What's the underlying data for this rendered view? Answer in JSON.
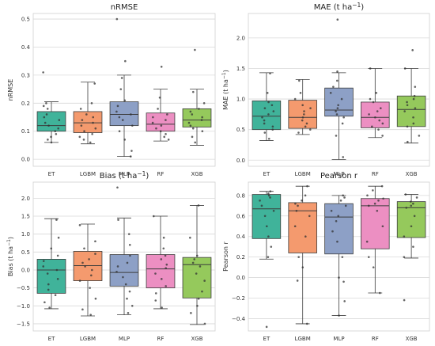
{
  "chart_data": [
    {
      "type": "box",
      "title": "nRMSE",
      "title_sup": "",
      "title_suffix": "",
      "ylabel": "nRMSE",
      "ylabel_sup": "",
      "ylabel_suffix": "",
      "ylim": [
        -0.025,
        0.52
      ],
      "yticks": [
        0.0,
        0.1,
        0.2,
        0.3,
        0.4,
        0.5
      ],
      "ytick_labels": [
        "0.0",
        "0.1",
        "0.2",
        "0.3",
        "0.4",
        "0.5"
      ],
      "categories": [
        "ET",
        "LGBM",
        "MLP",
        "RF",
        "XGB"
      ],
      "boxes": [
        {
          "whisker_low": 0.06,
          "q1": 0.1,
          "median": 0.12,
          "q3": 0.17,
          "whisker_high": 0.205
        },
        {
          "whisker_low": 0.055,
          "q1": 0.095,
          "median": 0.13,
          "q3": 0.17,
          "whisker_high": 0.275
        },
        {
          "whisker_low": 0.01,
          "q1": 0.12,
          "median": 0.16,
          "q3": 0.205,
          "whisker_high": 0.3
        },
        {
          "whisker_low": 0.065,
          "q1": 0.1,
          "median": 0.125,
          "q3": 0.165,
          "whisker_high": 0.25
        },
        {
          "whisker_low": 0.05,
          "q1": 0.115,
          "median": 0.14,
          "q3": 0.18,
          "whisker_high": 0.25
        }
      ],
      "points": [
        [
          0.31,
          0.2,
          0.19,
          0.18,
          0.16,
          0.15,
          0.14,
          0.13,
          0.12,
          0.11,
          0.1,
          0.09,
          0.08,
          0.07,
          0.06
        ],
        [
          0.27,
          0.2,
          0.18,
          0.16,
          0.15,
          0.14,
          0.13,
          0.12,
          0.11,
          0.1,
          0.09,
          0.08,
          0.07,
          0.06
        ],
        [
          0.5,
          0.35,
          0.29,
          0.25,
          0.21,
          0.19,
          0.17,
          0.16,
          0.15,
          0.14,
          0.12,
          0.1,
          0.07,
          0.03,
          0.01
        ],
        [
          0.33,
          0.22,
          0.18,
          0.16,
          0.15,
          0.14,
          0.13,
          0.12,
          0.11,
          0.1,
          0.09,
          0.08,
          0.07
        ],
        [
          0.39,
          0.24,
          0.2,
          0.18,
          0.17,
          0.16,
          0.15,
          0.14,
          0.13,
          0.12,
          0.11,
          0.1,
          0.08,
          0.06
        ]
      ]
    },
    {
      "type": "box",
      "title": "MAE (t ha",
      "title_sup": "−1",
      "title_suffix": ")",
      "ylabel": "MAE (t ha",
      "ylabel_sup": "−1",
      "ylabel_suffix": ")",
      "ylim": [
        -0.1,
        2.4
      ],
      "yticks": [
        0.0,
        0.5,
        1.0,
        1.5,
        2.0
      ],
      "ytick_labels": [
        "0.0",
        "0.5",
        "1.0",
        "1.5",
        "2.0"
      ],
      "categories": [
        "ET",
        "LGBM",
        "MLP",
        "RF",
        "XGB"
      ],
      "boxes": [
        {
          "whisker_low": 0.32,
          "q1": 0.5,
          "median": 0.72,
          "q3": 0.97,
          "whisker_high": 1.43
        },
        {
          "whisker_low": 0.42,
          "q1": 0.52,
          "median": 0.7,
          "q3": 0.98,
          "whisker_high": 1.32
        },
        {
          "whisker_low": 0.01,
          "q1": 0.72,
          "median": 0.82,
          "q3": 1.18,
          "whisker_high": 1.43
        },
        {
          "whisker_low": 0.37,
          "q1": 0.53,
          "median": 0.7,
          "q3": 0.95,
          "whisker_high": 1.5
        },
        {
          "whisker_low": 0.28,
          "q1": 0.55,
          "median": 0.83,
          "q3": 1.05,
          "whisker_high": 1.5
        }
      ],
      "points": [
        [
          1.42,
          1.1,
          0.95,
          0.9,
          0.85,
          0.8,
          0.75,
          0.7,
          0.65,
          0.6,
          0.55,
          0.5,
          0.45,
          0.35
        ],
        [
          1.3,
          1.1,
          1.0,
          0.9,
          0.85,
          0.8,
          0.75,
          0.7,
          0.65,
          0.6,
          0.55,
          0.5,
          0.45
        ],
        [
          2.3,
          1.45,
          1.3,
          1.2,
          1.1,
          1.0,
          0.9,
          0.85,
          0.8,
          0.75,
          0.7,
          0.6,
          0.4,
          0.05
        ],
        [
          1.5,
          1.1,
          1.0,
          0.95,
          0.85,
          0.8,
          0.75,
          0.7,
          0.65,
          0.6,
          0.55,
          0.5,
          0.4
        ],
        [
          1.8,
          1.5,
          1.2,
          1.05,
          1.0,
          0.95,
          0.9,
          0.85,
          0.8,
          0.7,
          0.6,
          0.55,
          0.4,
          0.3
        ]
      ]
    },
    {
      "type": "box",
      "title": "Bias (t ha",
      "title_sup": "−1",
      "title_suffix": ")",
      "ylabel": "Bias (t ha",
      "ylabel_sup": "−1",
      "ylabel_suffix": ")",
      "ylim": [
        -1.7,
        2.45
      ],
      "yticks": [
        -1.5,
        -1.0,
        -0.5,
        0.0,
        0.5,
        1.0,
        1.5,
        2.0
      ],
      "ytick_labels": [
        "−1.5",
        "−1.0",
        "−0.5",
        "0.0",
        "0.5",
        "1.0",
        "1.5",
        "2.0"
      ],
      "categories": [
        "ET",
        "LGBM",
        "MLP",
        "RF",
        "XGB"
      ],
      "boxes": [
        {
          "whisker_low": -1.08,
          "q1": -0.65,
          "median": 0.0,
          "q3": 0.3,
          "whisker_high": 1.43
        },
        {
          "whisker_low": -1.28,
          "q1": -0.3,
          "median": 0.12,
          "q3": 0.52,
          "whisker_high": 1.28
        },
        {
          "whisker_low": -1.25,
          "q1": -0.45,
          "median": -0.07,
          "q3": 0.43,
          "whisker_high": 1.45
        },
        {
          "whisker_low": -1.08,
          "q1": -0.5,
          "median": 0.03,
          "q3": 0.43,
          "whisker_high": 1.5
        },
        {
          "whisker_low": -1.52,
          "q1": -0.78,
          "median": 0.15,
          "q3": 0.35,
          "whisker_high": 1.8
        }
      ],
      "points": [
        [
          1.4,
          0.9,
          0.6,
          0.4,
          0.25,
          0.1,
          0.0,
          -0.1,
          -0.25,
          -0.4,
          -0.55,
          -0.7,
          -0.9,
          -1.05
        ],
        [
          1.25,
          0.8,
          0.6,
          0.45,
          0.3,
          0.2,
          0.1,
          0.0,
          -0.15,
          -0.3,
          -0.5,
          -0.8,
          -1.1,
          -1.25
        ],
        [
          2.3,
          1.4,
          1.0,
          0.7,
          0.4,
          0.2,
          0.1,
          -0.05,
          -0.2,
          -0.4,
          -0.6,
          -0.8,
          -1.0,
          -1.2
        ],
        [
          1.5,
          0.9,
          0.6,
          0.4,
          0.3,
          0.15,
          0.05,
          -0.1,
          -0.25,
          -0.45,
          -0.65,
          -0.85,
          -1.05
        ],
        [
          1.8,
          0.9,
          0.4,
          0.3,
          0.2,
          0.1,
          -0.1,
          -0.3,
          -0.6,
          -0.8,
          -1.0,
          -1.2,
          -1.5
        ]
      ]
    },
    {
      "type": "box",
      "title": "Pearson r",
      "title_sup": "",
      "title_suffix": "",
      "ylabel": "Pearson r",
      "ylabel_sup": "",
      "ylabel_suffix": "",
      "ylim": [
        -0.52,
        0.93
      ],
      "yticks": [
        -0.4,
        -0.2,
        0.0,
        0.2,
        0.4,
        0.6,
        0.8
      ],
      "ytick_labels": [
        "−0.4",
        "−0.2",
        "0.0",
        "0.2",
        "0.4",
        "0.6",
        "0.8"
      ],
      "categories": [
        "ET",
        "LGBM",
        "MLP",
        "RF",
        "XGB"
      ],
      "boxes": [
        {
          "whisker_low": 0.18,
          "q1": 0.38,
          "median": 0.67,
          "q3": 0.81,
          "whisker_high": 0.84
        },
        {
          "whisker_low": -0.45,
          "q1": 0.24,
          "median": 0.65,
          "q3": 0.73,
          "whisker_high": 0.89
        },
        {
          "whisker_low": -0.37,
          "q1": 0.23,
          "median": 0.59,
          "q3": 0.72,
          "whisker_high": 0.8
        },
        {
          "whisker_low": -0.15,
          "q1": 0.28,
          "median": 0.7,
          "q3": 0.77,
          "whisker_high": 0.89
        },
        {
          "whisker_low": 0.19,
          "q1": 0.39,
          "median": 0.68,
          "q3": 0.74,
          "whisker_high": 0.81
        }
      ],
      "points": [
        [
          0.84,
          0.82,
          0.8,
          0.78,
          0.75,
          0.7,
          0.65,
          0.6,
          0.5,
          0.4,
          0.3,
          0.2,
          -0.48
        ],
        [
          0.89,
          0.8,
          0.75,
          0.72,
          0.7,
          0.65,
          0.6,
          0.5,
          0.4,
          0.2,
          0.1,
          -0.03,
          -0.45
        ],
        [
          0.8,
          0.78,
          0.75,
          0.7,
          0.65,
          0.6,
          0.55,
          0.45,
          0.35,
          0.2,
          0.0,
          -0.04,
          -0.23,
          -0.37
        ],
        [
          0.89,
          0.85,
          0.8,
          0.77,
          0.75,
          0.72,
          0.7,
          0.65,
          0.5,
          0.35,
          0.2,
          0.1,
          -0.15
        ],
        [
          0.81,
          0.78,
          0.74,
          0.72,
          0.7,
          0.68,
          0.6,
          0.5,
          0.4,
          0.3,
          0.2,
          -0.22
        ]
      ]
    }
  ],
  "colors": {
    "ET": "#40b39a",
    "LGBM": "#f49a6e",
    "MLP": "#8da0c6",
    "RF": "#ec8fc2",
    "XGB": "#95c95c",
    "grid": "#d9d9d9",
    "axis": "#cfcfcf",
    "box_edge": "#3d3d3d",
    "point": "#333333"
  }
}
